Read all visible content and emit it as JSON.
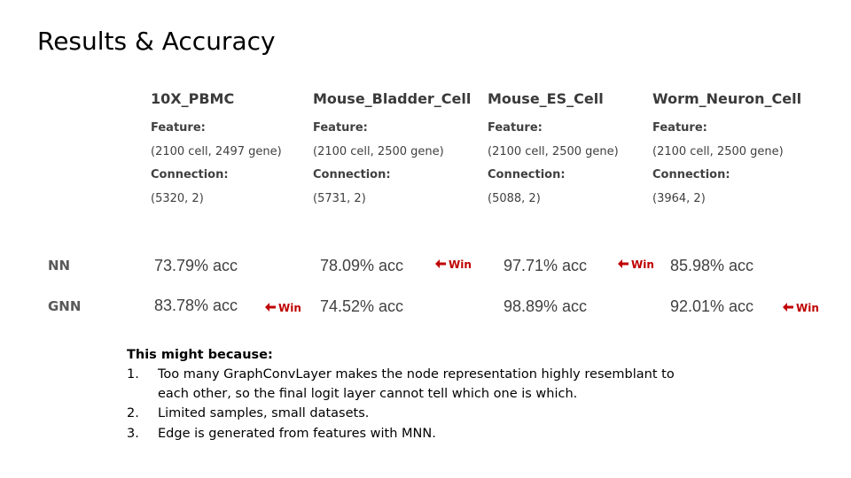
{
  "title": "Results & Accuracy",
  "datasets": [
    {
      "name": "10X_PBMC",
      "feature_label": "Feature:",
      "feature": "(2100 cell, 2497 gene)",
      "connection_label": "Connection:",
      "connection": "(5320, 2)"
    },
    {
      "name": "Mouse_Bladder_Cell",
      "feature_label": "Feature:",
      "feature": "(2100 cell, 2500 gene)",
      "connection_label": "Connection:",
      "connection": "(5731, 2)"
    },
    {
      "name": "Mouse_ES_Cell",
      "feature_label": "Feature:",
      "feature": "(2100 cell, 2500 gene)",
      "connection_label": "Connection:",
      "connection": "(5088, 2)"
    },
    {
      "name": "Worm_Neuron_Cell",
      "feature_label": "Feature:",
      "feature": "(2100 cell, 2500 gene)",
      "connection_label": "Connection:",
      "connection": "(3964, 2)"
    }
  ],
  "rows": [
    {
      "label": "NN",
      "values": [
        "73.79% acc",
        "78.09% acc",
        "97.71% acc",
        "85.98% acc"
      ]
    },
    {
      "label": "GNN",
      "values": [
        "83.78% acc",
        "74.52% acc",
        "98.89% acc",
        "92.01% acc"
      ]
    }
  ],
  "win_label": "Win",
  "win_arrow_icon": "left-arrow-icon",
  "win_color": "#c00000",
  "reasons": {
    "title": "This might because:",
    "items": [
      {
        "num": "1.",
        "text": "Too many GraphConvLayer makes the node representation highly resemblant to each other, so the final logit layer cannot tell which one is which."
      },
      {
        "num": "2.",
        "text": "Limited samples, small datasets."
      },
      {
        "num": "3.",
        "text": "Edge is generated from features with MNN."
      }
    ]
  }
}
